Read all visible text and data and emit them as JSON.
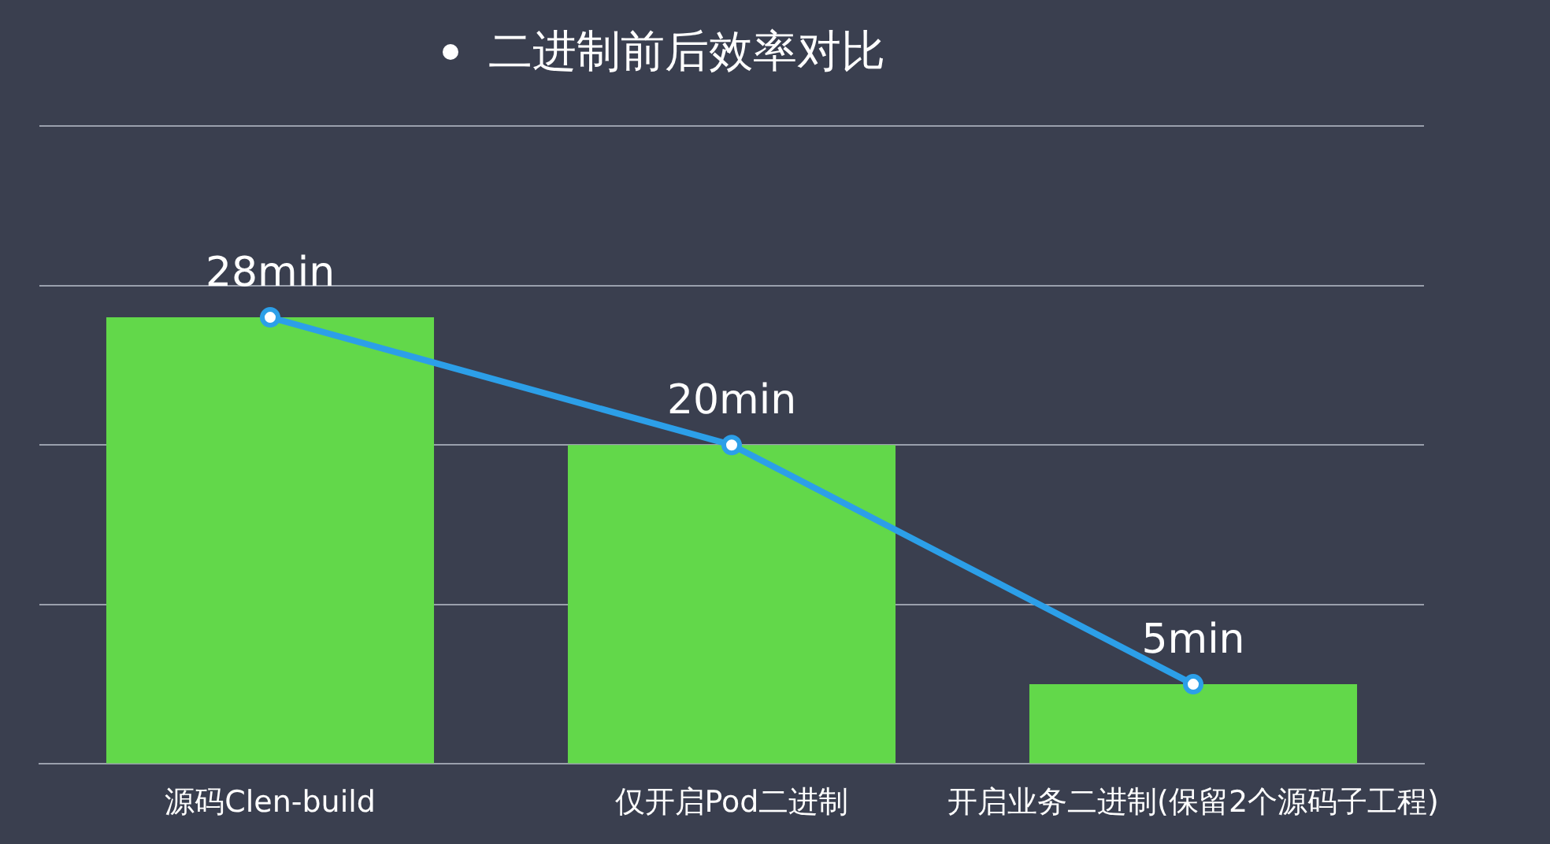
{
  "chart_data": {
    "type": "bar",
    "title": "二进制前后效率对比",
    "categories": [
      "源码Clen-build",
      "仅开启Pod二进制",
      "开启业务二进制(保留2个源码子工程)"
    ],
    "series": [
      {
        "color": "#62d84a",
        "values": [
          28,
          20,
          5
        ]
      },
      {
        "type": "line",
        "color": "#2c9fe8",
        "values": [
          28,
          20,
          5
        ],
        "value_labels": [
          "28min",
          "20min",
          "5min"
        ]
      }
    ],
    "ylim": [
      0,
      40
    ],
    "yticks": [
      {
        "value": 0,
        "label": null
      },
      {
        "value": 10,
        "label": null
      },
      {
        "value": 20,
        "label": null
      },
      {
        "value": 30,
        "label": null
      },
      {
        "value": 40,
        "label": null
      }
    ],
    "grid": "y",
    "legend": false,
    "tick_labels": "x",
    "marker": "circle",
    "line_style": "solid"
  }
}
